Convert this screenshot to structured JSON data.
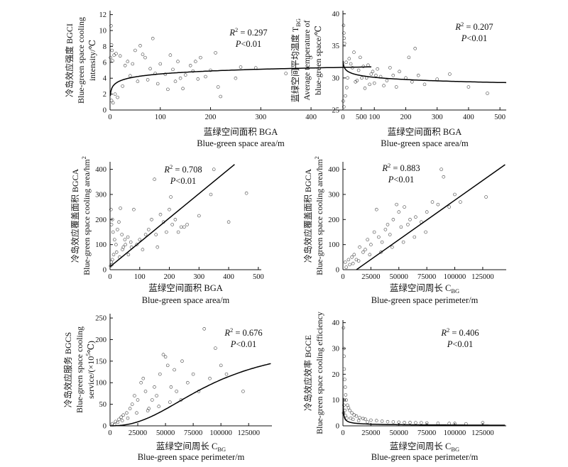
{
  "chart_data": [
    {
      "id": "a",
      "type": "scatter",
      "xlabel_cn": "蓝绿空间面积 BGA",
      "xlabel_en": "Blue-green space area/m",
      "ylabel": [
        "冷岛效应强度 BGCI",
        "Blue-green space cooling",
        "intensity/℃"
      ],
      "x_ticks": [
        0,
        100,
        200,
        300,
        400,
        500
      ],
      "y_ticks": [
        0,
        2,
        4,
        6,
        8,
        10,
        12
      ],
      "xlim": [
        0,
        520
      ],
      "ylim": [
        0,
        12.5
      ],
      "r2_label": "R",
      "r2_value": "= 0.297",
      "p_label": "P<0.01",
      "fit": {
        "kind": "log",
        "a": 2.05,
        "b": 0.54,
        "x0": 0.6
      },
      "points": [
        [
          2,
          10.6
        ],
        [
          3,
          8.2
        ],
        [
          4,
          7.5
        ],
        [
          1,
          6.6
        ],
        [
          5,
          6.2
        ],
        [
          8,
          6.9
        ],
        [
          12,
          7.1
        ],
        [
          20,
          6.8
        ],
        [
          30,
          5.6
        ],
        [
          35,
          6.1
        ],
        [
          45,
          5.8
        ],
        [
          50,
          7.5
        ],
        [
          60,
          8.1
        ],
        [
          65,
          7.0
        ],
        [
          70,
          6.6
        ],
        [
          80,
          5.2
        ],
        [
          85,
          9.0
        ],
        [
          90,
          4.6
        ],
        [
          100,
          5.8
        ],
        [
          110,
          4.5
        ],
        [
          115,
          2.6
        ],
        [
          120,
          6.9
        ],
        [
          125,
          5.1
        ],
        [
          135,
          6.1
        ],
        [
          140,
          4.0
        ],
        [
          150,
          4.4
        ],
        [
          160,
          5.6
        ],
        [
          165,
          4.9
        ],
        [
          170,
          6.1
        ],
        [
          180,
          6.6
        ],
        [
          190,
          4.2
        ],
        [
          200,
          5.0
        ],
        [
          210,
          7.2
        ],
        [
          215,
          2.9
        ],
        [
          220,
          1.7
        ],
        [
          250,
          4.0
        ],
        [
          260,
          5.4
        ],
        [
          290,
          5.3
        ],
        [
          350,
          4.6
        ],
        [
          400,
          6.6
        ],
        [
          470,
          6.0
        ],
        [
          10,
          2.0
        ],
        [
          25,
          3.0
        ],
        [
          40,
          4.3
        ],
        [
          55,
          3.6
        ],
        [
          75,
          3.8
        ],
        [
          95,
          3.3
        ],
        [
          130,
          3.6
        ],
        [
          145,
          2.7
        ],
        [
          175,
          3.9
        ],
        [
          3,
          1.2
        ],
        [
          6,
          0.9
        ],
        [
          15,
          1.6
        ]
      ]
    },
    {
      "id": "b",
      "type": "scatter",
      "xlabel_cn": "蓝绿空间面积 BGA",
      "xlabel_en": "Blue-green space area/m",
      "ylabel": [
        "蓝绿空间平均温度 T",
        "Average temperature of",
        "blue-green space/℃"
      ],
      "ylabel_sub": "BG",
      "x_ticks": [
        0,
        100,
        200,
        300,
        400,
        500
      ],
      "y_ticks": [
        25,
        30,
        35,
        40
      ],
      "xlim": [
        0,
        520
      ],
      "ylim": [
        25,
        40.5
      ],
      "r2_label": "R",
      "r2_value": "= 0.207",
      "p_label": "P<0.01",
      "fit": {
        "kind": "log",
        "a": 32.4,
        "b": -0.5,
        "x0": 0.6
      },
      "points": [
        [
          2,
          38.2
        ],
        [
          3,
          37.0
        ],
        [
          4,
          36.2
        ],
        [
          5,
          35.4
        ],
        [
          1,
          26.4
        ],
        [
          3,
          25.5
        ],
        [
          8,
          27.2
        ],
        [
          12,
          28.5
        ],
        [
          20,
          33.0
        ],
        [
          25,
          32.2
        ],
        [
          35,
          34.0
        ],
        [
          40,
          29.4
        ],
        [
          50,
          31.2
        ],
        [
          60,
          30.0
        ],
        [
          70,
          28.4
        ],
        [
          80,
          32.0
        ],
        [
          90,
          30.6
        ],
        [
          100,
          29.2
        ],
        [
          110,
          31.4
        ],
        [
          120,
          30.2
        ],
        [
          130,
          28.8
        ],
        [
          140,
          29.6
        ],
        [
          150,
          31.6
        ],
        [
          160,
          30.4
        ],
        [
          170,
          28.6
        ],
        [
          180,
          31.0
        ],
        [
          200,
          30.0
        ],
        [
          210,
          33.2
        ],
        [
          220,
          29.4
        ],
        [
          230,
          34.6
        ],
        [
          240,
          30.4
        ],
        [
          260,
          29.0
        ],
        [
          300,
          29.8
        ],
        [
          340,
          30.6
        ],
        [
          400,
          28.6
        ],
        [
          460,
          27.6
        ],
        [
          15,
          30.0
        ],
        [
          30,
          31.6
        ],
        [
          45,
          29.6
        ],
        [
          55,
          33.2
        ],
        [
          65,
          31.8
        ],
        [
          75,
          30.0
        ],
        [
          85,
          29.0
        ],
        [
          95,
          31.0
        ],
        [
          105,
          30.4
        ]
      ]
    },
    {
      "id": "c",
      "type": "scatter",
      "xlabel_cn": "蓝绿空间面积 BGA",
      "xlabel_en": "Blue-green space area/m",
      "ylabel": [
        "冷岛效应覆盖面积 BGCA",
        "Blue-green space cooling area/hm"
      ],
      "ylabel_sup": "2",
      "x_ticks": [
        0,
        100,
        200,
        300,
        400,
        500
      ],
      "y_ticks": [
        0,
        100,
        200,
        300,
        400
      ],
      "xlim": [
        0,
        510
      ],
      "ylim": [
        0,
        430
      ],
      "r2_label": "R",
      "r2_value": "= 0.708",
      "p_label": "P<0.01",
      "fit": {
        "kind": "linear",
        "slope": 0.97,
        "intercept": 12,
        "x_end": 420
      },
      "points": [
        [
          3,
          240
        ],
        [
          5,
          180
        ],
        [
          8,
          200
        ],
        [
          10,
          150
        ],
        [
          15,
          120
        ],
        [
          20,
          100
        ],
        [
          25,
          160
        ],
        [
          30,
          190
        ],
        [
          35,
          245
        ],
        [
          40,
          140
        ],
        [
          45,
          90
        ],
        [
          50,
          120
        ],
        [
          60,
          130
        ],
        [
          70,
          110
        ],
        [
          80,
          240
        ],
        [
          90,
          100
        ],
        [
          100,
          120
        ],
        [
          110,
          80
        ],
        [
          120,
          140
        ],
        [
          130,
          160
        ],
        [
          140,
          200
        ],
        [
          150,
          360
        ],
        [
          155,
          140
        ],
        [
          160,
          90
        ],
        [
          170,
          220
        ],
        [
          180,
          190
        ],
        [
          190,
          150
        ],
        [
          200,
          240
        ],
        [
          205,
          290
        ],
        [
          210,
          180
        ],
        [
          220,
          200
        ],
        [
          230,
          150
        ],
        [
          240,
          170
        ],
        [
          250,
          170
        ],
        [
          260,
          180
        ],
        [
          300,
          215
        ],
        [
          340,
          300
        ],
        [
          350,
          400
        ],
        [
          400,
          190
        ],
        [
          460,
          305
        ],
        [
          12,
          60
        ],
        [
          22,
          70
        ],
        [
          32,
          50
        ],
        [
          42,
          80
        ],
        [
          52,
          100
        ],
        [
          62,
          60
        ],
        [
          72,
          90
        ],
        [
          4,
          30
        ],
        [
          6,
          20
        ],
        [
          8,
          40
        ],
        [
          2,
          15
        ]
      ]
    },
    {
      "id": "d",
      "type": "scatter",
      "xlabel_cn": "蓝绿空间周长 C",
      "xlabel_sub": "BG",
      "xlabel_en": "Blue-green space perimeter/m",
      "ylabel": [
        "冷岛效应覆盖面积 BGCA",
        "Blue-green space cooling area/hm"
      ],
      "ylabel_sup": "2",
      "x_ticks": [
        0,
        25000,
        50000,
        75000,
        100000,
        125000
      ],
      "y_ticks": [
        0,
        100,
        200,
        300,
        400
      ],
      "xlim": [
        0,
        146000
      ],
      "ylim": [
        0,
        430
      ],
      "r2_label": "R",
      "r2_value": "= 0.883",
      "p_label": "P<0.01",
      "fit": {
        "kind": "linear",
        "slope": 0.00315,
        "intercept": -38,
        "x_end": 145000
      },
      "points": [
        [
          2000,
          30
        ],
        [
          5000,
          40
        ],
        [
          8000,
          50
        ],
        [
          10000,
          60
        ],
        [
          12000,
          40
        ],
        [
          15000,
          90
        ],
        [
          18000,
          70
        ],
        [
          20000,
          80
        ],
        [
          22000,
          120
        ],
        [
          25000,
          100
        ],
        [
          28000,
          150
        ],
        [
          30000,
          240
        ],
        [
          32000,
          130
        ],
        [
          35000,
          110
        ],
        [
          38000,
          160
        ],
        [
          40000,
          180
        ],
        [
          42000,
          140
        ],
        [
          45000,
          200
        ],
        [
          48000,
          260
        ],
        [
          50000,
          230
        ],
        [
          52000,
          170
        ],
        [
          55000,
          250
        ],
        [
          58000,
          180
        ],
        [
          60000,
          200
        ],
        [
          65000,
          210
        ],
        [
          70000,
          190
        ],
        [
          75000,
          230
        ],
        [
          80000,
          270
        ],
        [
          85000,
          260
        ],
        [
          88000,
          400
        ],
        [
          90000,
          370
        ],
        [
          95000,
          250
        ],
        [
          100000,
          300
        ],
        [
          105000,
          270
        ],
        [
          128000,
          290
        ],
        [
          3000,
          10
        ],
        [
          6000,
          20
        ],
        [
          9000,
          25
        ],
        [
          14000,
          35
        ],
        [
          24000,
          60
        ],
        [
          34000,
          70
        ],
        [
          44000,
          90
        ],
        [
          54000,
          110
        ],
        [
          64000,
          130
        ],
        [
          74000,
          150
        ]
      ]
    },
    {
      "id": "e",
      "type": "scatter",
      "xlabel_cn": "蓝绿空间周长 C",
      "xlabel_sub": "BG",
      "xlabel_en": "Blue-green space perimeter/m",
      "ylabel": [
        "冷岛效应服务 BGCS",
        "Blue-green space cooling",
        "service/(×10  ℃)"
      ],
      "ylabel_sup": "5",
      "x_ticks": [
        0,
        25000,
        50000,
        75000,
        100000,
        125000
      ],
      "y_ticks": [
        0,
        50,
        100,
        150,
        200,
        250
      ],
      "xlim": [
        0,
        146000
      ],
      "ylim": [
        0,
        260
      ],
      "r2_label": "R",
      "r2_value": "= 0.676",
      "p_label": "P<0.01",
      "fit": {
        "kind": "sigmoid",
        "L": 195,
        "k": 2.3,
        "x50": 92000,
        "x_end": 145000
      },
      "points": [
        [
          2000,
          5
        ],
        [
          5000,
          10
        ],
        [
          8000,
          15
        ],
        [
          10000,
          20
        ],
        [
          12000,
          25
        ],
        [
          15000,
          30
        ],
        [
          18000,
          40
        ],
        [
          20000,
          50
        ],
        [
          22000,
          70
        ],
        [
          25000,
          60
        ],
        [
          28000,
          100
        ],
        [
          30000,
          110
        ],
        [
          32000,
          80
        ],
        [
          35000,
          40
        ],
        [
          38000,
          60
        ],
        [
          40000,
          90
        ],
        [
          42000,
          70
        ],
        [
          45000,
          120
        ],
        [
          48000,
          165
        ],
        [
          50000,
          160
        ],
        [
          52000,
          140
        ],
        [
          55000,
          90
        ],
        [
          58000,
          130
        ],
        [
          60000,
          80
        ],
        [
          65000,
          150
        ],
        [
          70000,
          100
        ],
        [
          75000,
          120
        ],
        [
          80000,
          80
        ],
        [
          85000,
          225
        ],
        [
          90000,
          110
        ],
        [
          95000,
          180
        ],
        [
          100000,
          140
        ],
        [
          105000,
          120
        ],
        [
          120000,
          80
        ],
        [
          4000,
          3
        ],
        [
          7000,
          8
        ],
        [
          11000,
          12
        ],
        [
          16000,
          18
        ],
        [
          24000,
          30
        ],
        [
          34000,
          35
        ],
        [
          44000,
          45
        ],
        [
          54000,
          55
        ],
        [
          64000,
          60
        ]
      ]
    },
    {
      "id": "f",
      "type": "scatter",
      "xlabel_cn": "蓝绿空间周长 C",
      "xlabel_sub": "BG",
      "xlabel_en": "Blue-green space perimeter/m",
      "ylabel": [
        "冷岛效应效率 BGCE",
        "Blue-green space cooling efficiency"
      ],
      "x_ticks": [
        0,
        25000,
        50000,
        75000,
        100000,
        125000
      ],
      "y_ticks": [
        0,
        10,
        20,
        30,
        40
      ],
      "xlim": [
        0,
        146000
      ],
      "ylim": [
        0,
        41
      ],
      "r2_label": "R",
      "r2_value": "= 0.406",
      "p_label": "P<0.01",
      "fit": {
        "kind": "power",
        "a": 170,
        "b": -0.55,
        "x0": 150,
        "x_end": 145000
      },
      "points": [
        [
          500,
          38
        ],
        [
          800,
          30
        ],
        [
          1000,
          27
        ],
        [
          1200,
          22
        ],
        [
          1500,
          18
        ],
        [
          2000,
          15
        ],
        [
          2500,
          12
        ],
        [
          3000,
          10
        ],
        [
          4000,
          8
        ],
        [
          5000,
          7
        ],
        [
          6000,
          6
        ],
        [
          8000,
          5
        ],
        [
          10000,
          4.2
        ],
        [
          12000,
          3.8
        ],
        [
          15000,
          3.2
        ],
        [
          18000,
          2.8
        ],
        [
          20000,
          2.6
        ],
        [
          25000,
          2.2
        ],
        [
          30000,
          2.0
        ],
        [
          35000,
          1.8
        ],
        [
          40000,
          1.6
        ],
        [
          45000,
          1.5
        ],
        [
          50000,
          1.4
        ],
        [
          55000,
          1.3
        ],
        [
          60000,
          1.3
        ],
        [
          65000,
          1.2
        ],
        [
          70000,
          1.2
        ],
        [
          75000,
          1.1
        ],
        [
          85000,
          1.0
        ],
        [
          95000,
          0.9
        ],
        [
          100000,
          0.9
        ],
        [
          110000,
          0.8
        ],
        [
          125000,
          1.2
        ],
        [
          600,
          5
        ],
        [
          900,
          8
        ],
        [
          1300,
          10
        ],
        [
          1800,
          6
        ],
        [
          2200,
          4
        ],
        [
          3500,
          3
        ],
        [
          7000,
          3
        ],
        [
          9000,
          2.5
        ],
        [
          14000,
          2.0
        ],
        [
          22000,
          1.5
        ]
      ]
    }
  ]
}
